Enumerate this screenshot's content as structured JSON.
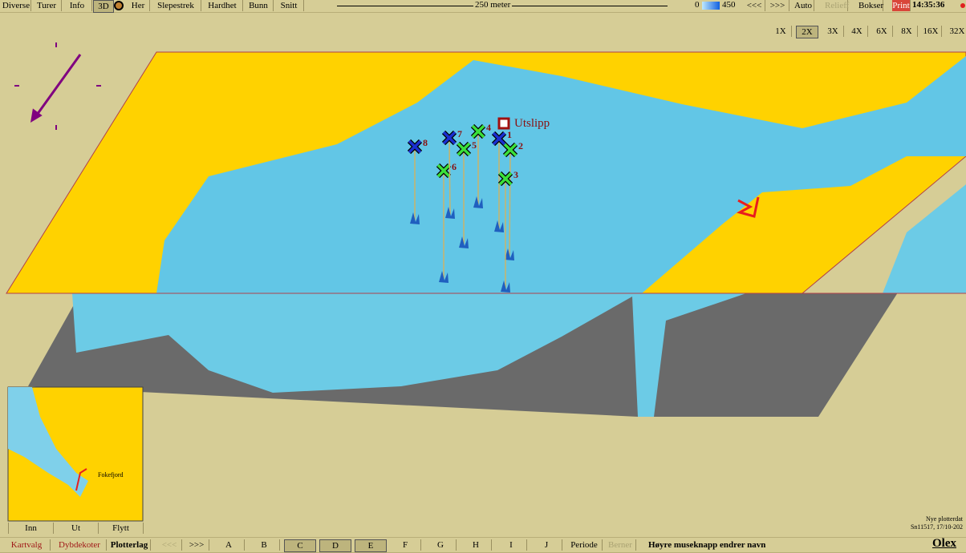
{
  "top_bar": {
    "menu": [
      "Diverse",
      "Turer",
      "Info",
      "3D"
    ],
    "menu2": [
      "Her",
      "Slepestrek",
      "Hardhet",
      "Bunn",
      "Snitt"
    ],
    "scale": "250 meter",
    "depth_min": "0",
    "depth_max": "450",
    "buttons": [
      "<<<",
      ">>>",
      "Auto",
      "Relieff",
      "Bokser",
      "Print"
    ],
    "clock": "14:35:36"
  },
  "zoom": [
    "1X",
    "2X",
    "3X",
    "4X",
    "6X",
    "8X",
    "16X",
    "32X"
  ],
  "site_label": "Utslipp",
  "markers": [
    "1",
    "2",
    "3",
    "4",
    "5",
    "6",
    "7",
    "8"
  ],
  "minimap": {
    "place": "Fokefjord",
    "buttons": [
      "Inn",
      "Ut",
      "Flytt"
    ]
  },
  "status": [
    "Nye plotterdat",
    "Sn11517, 17/10-202"
  ],
  "brand": "Olex",
  "bottom_bar": {
    "tabs": [
      "Kartvalg",
      "Dybdekoter",
      "Plotterlag"
    ],
    "nav": [
      "<<<",
      ">>>"
    ],
    "layers": [
      "A",
      "B",
      "C",
      "D",
      "E",
      "F",
      "G",
      "H",
      "I",
      "J"
    ],
    "period": "Periode",
    "berner": "Berner",
    "hint": "Høyre museknapp endrer navn"
  }
}
